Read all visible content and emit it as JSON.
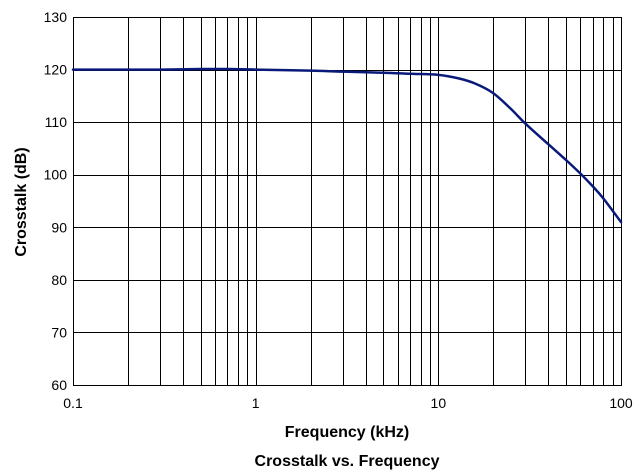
{
  "chart_data": {
    "type": "line",
    "title": "Crosstalk vs. Frequency",
    "xlabel": "Frequency (kHz)",
    "ylabel": "Crosstalk (dB)",
    "x_scale": "log",
    "xlim": [
      0.1,
      100
    ],
    "ylim": [
      60,
      130
    ],
    "x_ticks": [
      0.1,
      1,
      10,
      100
    ],
    "x_tick_labels": [
      "0.1",
      "1",
      "10",
      "100"
    ],
    "y_ticks": [
      60,
      70,
      80,
      90,
      100,
      110,
      120,
      130
    ],
    "y_tick_labels": [
      "60",
      "70",
      "80",
      "90",
      "100",
      "110",
      "120",
      "130"
    ],
    "grid": true,
    "legend": "none",
    "series": [
      {
        "color": "#0a1a7a",
        "x": [
          0.1,
          0.2,
          0.3,
          0.5,
          0.7,
          1,
          2,
          3,
          5,
          7,
          10,
          13,
          16,
          20,
          25,
          30,
          40,
          50,
          60,
          70,
          80,
          100
        ],
        "y": [
          120,
          120,
          120,
          120.1,
          120.1,
          120,
          119.8,
          119.6,
          119.4,
          119.2,
          119,
          118.3,
          117.3,
          115.5,
          112.5,
          109.7,
          105.8,
          102.8,
          100.2,
          97.8,
          95.5,
          91
        ]
      }
    ]
  }
}
